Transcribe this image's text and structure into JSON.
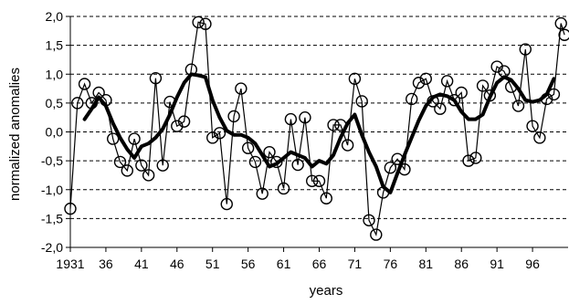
{
  "chart_data": {
    "type": "line",
    "xlabel": "years",
    "ylabel": "normalized anomalies",
    "xlim": [
      1931,
      2000
    ],
    "ylim": [
      -2.0,
      2.0
    ],
    "y_ticks": [
      "-2,0",
      "-1,5",
      "-1,0",
      "-0,5",
      "0,0",
      "0,5",
      "1,0",
      "1,5",
      "2,0"
    ],
    "y_tick_values": [
      -2.0,
      -1.5,
      -1.0,
      -0.5,
      0.0,
      0.5,
      1.0,
      1.5,
      2.0
    ],
    "x_ticks": [
      "1931",
      "36",
      "41",
      "46",
      "51",
      "56",
      "61",
      "66",
      "71",
      "76",
      "81",
      "86",
      "91",
      "96"
    ],
    "x_tick_values": [
      1931,
      1936,
      1941,
      1946,
      1951,
      1956,
      1961,
      1966,
      1971,
      1976,
      1981,
      1986,
      1991,
      1996
    ],
    "grid": "horizontal dashed",
    "legend": "none",
    "series": [
      {
        "style": "thin line with open circle markers",
        "x": [
          1931,
          1932,
          1933,
          1934,
          1935,
          1936,
          1937,
          1938,
          1939,
          1940,
          1941,
          1942,
          1943,
          1944,
          1945,
          1946,
          1947,
          1948,
          1949,
          1950,
          1951,
          1952,
          1953,
          1954,
          1955,
          1956,
          1957,
          1958,
          1959,
          1960,
          1961,
          1962,
          1963,
          1964,
          1965,
          1966,
          1967,
          1968,
          1969,
          1970,
          1971,
          1972,
          1973,
          1974,
          1975,
          1976,
          1977,
          1978,
          1979,
          1980,
          1981,
          1982,
          1983,
          1984,
          1985,
          1986,
          1987,
          1988,
          1989,
          1990,
          1991,
          1992,
          1993,
          1994,
          1995,
          1996,
          1997,
          1998,
          1999,
          2000
        ],
        "values": [
          -1.33,
          0.5,
          0.83,
          0.5,
          0.68,
          0.55,
          -0.12,
          -0.52,
          -0.67,
          -0.12,
          -0.58,
          -0.75,
          0.93,
          -0.58,
          0.52,
          0.1,
          0.18,
          1.08,
          1.9,
          1.87,
          -0.1,
          -0.02,
          -1.25,
          0.27,
          0.75,
          -0.28,
          -0.52,
          -1.07,
          -0.35,
          -0.52,
          -0.98,
          0.22,
          -0.57,
          0.25,
          -0.85,
          -0.85,
          -1.15,
          0.12,
          0.12,
          -0.23,
          0.92,
          0.53,
          -1.53,
          -1.78,
          -1.05,
          -0.62,
          -0.47,
          -0.65,
          0.57,
          0.85,
          0.92,
          0.53,
          0.4,
          0.88,
          0.55,
          0.68,
          -0.5,
          -0.45,
          0.8,
          0.63,
          1.13,
          1.05,
          0.78,
          0.45,
          1.43,
          0.1,
          -0.1,
          0.57,
          0.65,
          1.88
        ],
        "trailing_marker": {
          "x": 2000.5,
          "y": 1.68
        }
      },
      {
        "style": "thick smoothed line",
        "x": [
          1933,
          1934,
          1935,
          1936,
          1937,
          1938,
          1939,
          1940,
          1941,
          1942,
          1943,
          1944,
          1945,
          1946,
          1947,
          1948,
          1949,
          1950,
          1951,
          1952,
          1953,
          1954,
          1955,
          1956,
          1957,
          1958,
          1959,
          1960,
          1961,
          1962,
          1963,
          1964,
          1965,
          1966,
          1967,
          1968,
          1969,
          1970,
          1971,
          1972,
          1973,
          1974,
          1975,
          1976,
          1977,
          1978,
          1979,
          1980,
          1981,
          1982,
          1983,
          1984,
          1985,
          1986,
          1987,
          1988,
          1989,
          1990,
          1991,
          1992,
          1993,
          1994,
          1995,
          1996,
          1997,
          1998,
          1999
        ],
        "values": [
          0.22,
          0.4,
          0.6,
          0.45,
          0.15,
          -0.1,
          -0.3,
          -0.45,
          -0.25,
          -0.2,
          -0.1,
          0.05,
          0.3,
          0.6,
          0.85,
          1.0,
          0.98,
          0.95,
          0.55,
          0.25,
          0.02,
          -0.05,
          -0.05,
          -0.1,
          -0.2,
          -0.4,
          -0.6,
          -0.55,
          -0.45,
          -0.35,
          -0.4,
          -0.45,
          -0.6,
          -0.5,
          -0.55,
          -0.4,
          -0.1,
          0.15,
          0.3,
          -0.05,
          -0.35,
          -0.6,
          -0.95,
          -1.05,
          -0.72,
          -0.4,
          -0.1,
          0.2,
          0.45,
          0.6,
          0.65,
          0.62,
          0.55,
          0.35,
          0.22,
          0.22,
          0.3,
          0.6,
          0.85,
          0.95,
          0.9,
          0.75,
          0.55,
          0.52,
          0.55,
          0.65,
          0.92
        ]
      }
    ]
  }
}
